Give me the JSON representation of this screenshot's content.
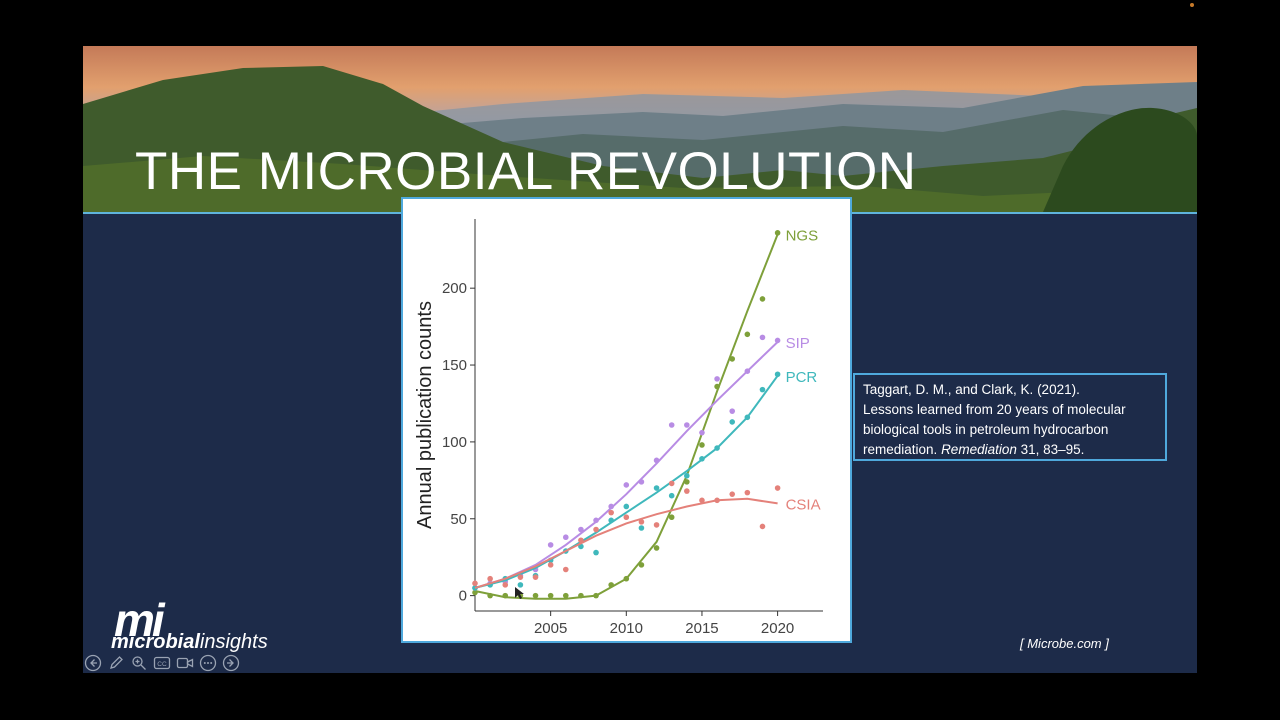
{
  "slide": {
    "title": "THE MICROBIAL REVOLUTION",
    "citation": {
      "line1": "Taggart, D. M., and Clark, K. (2021).",
      "line2": "Lessons learned from 20 years of molecular",
      "line3": "biological tools in petroleum hydrocarbon",
      "journal": "remediation.",
      "journal_italic": "Remediation",
      "volume_pages": "31, 83–95."
    },
    "source": "[ Microbe.com ]",
    "logo": {
      "mark": "mi",
      "word_bold": "microbial",
      "word_light": "insights"
    }
  },
  "toolbar": {
    "icons": [
      "back-icon",
      "pen-icon",
      "zoom-icon",
      "captions-icon",
      "camera-icon",
      "more-icon",
      "forward-icon"
    ]
  },
  "colors": {
    "slide_bg": "#1d2b49",
    "accent": "#4fa9dc",
    "ngs": "#7ea03a",
    "sip": "#b88ce4",
    "pcr": "#3fb8bc",
    "csia": "#e4817a"
  },
  "chart_data": {
    "type": "line",
    "title": "",
    "xlabel": "",
    "ylabel": "Annual publication counts",
    "xlim": [
      2000,
      2023
    ],
    "ylim": [
      -10,
      245
    ],
    "x_ticks": [
      2005,
      2010,
      2015,
      2020
    ],
    "y_ticks": [
      0,
      50,
      100,
      150,
      200
    ],
    "grid": false,
    "legend": "inline labels at right end of lines",
    "series": [
      {
        "name": "NGS",
        "color": "#7ea03a",
        "points": [
          [
            2000,
            2
          ],
          [
            2001,
            0
          ],
          [
            2002,
            0
          ],
          [
            2003,
            0
          ],
          [
            2004,
            0
          ],
          [
            2005,
            0
          ],
          [
            2006,
            0
          ],
          [
            2007,
            0
          ],
          [
            2008,
            0
          ],
          [
            2009,
            7
          ],
          [
            2010,
            11
          ],
          [
            2011,
            20
          ],
          [
            2012,
            31
          ],
          [
            2013,
            51
          ],
          [
            2014,
            74
          ],
          [
            2015,
            98
          ],
          [
            2016,
            136
          ],
          [
            2017,
            154
          ],
          [
            2018,
            170
          ],
          [
            2019,
            193
          ],
          [
            2020,
            236
          ]
        ],
        "fit": [
          [
            2000,
            3
          ],
          [
            2002,
            -1
          ],
          [
            2004,
            -2
          ],
          [
            2006,
            -2
          ],
          [
            2008,
            0
          ],
          [
            2010,
            11
          ],
          [
            2012,
            35
          ],
          [
            2014,
            78
          ],
          [
            2016,
            133
          ],
          [
            2018,
            185
          ],
          [
            2020,
            235
          ]
        ]
      },
      {
        "name": "SIP",
        "color": "#b88ce4",
        "points": [
          [
            2000,
            5
          ],
          [
            2001,
            8
          ],
          [
            2002,
            9
          ],
          [
            2003,
            13
          ],
          [
            2004,
            17
          ],
          [
            2005,
            33
          ],
          [
            2006,
            38
          ],
          [
            2007,
            43
          ],
          [
            2008,
            49
          ],
          [
            2009,
            58
          ],
          [
            2010,
            72
          ],
          [
            2011,
            74
          ],
          [
            2012,
            88
          ],
          [
            2013,
            111
          ],
          [
            2014,
            111
          ],
          [
            2015,
            106
          ],
          [
            2016,
            141
          ],
          [
            2017,
            120
          ],
          [
            2018,
            146
          ],
          [
            2019,
            168
          ],
          [
            2020,
            166
          ]
        ],
        "fit": [
          [
            2000,
            5
          ],
          [
            2002,
            11
          ],
          [
            2004,
            20
          ],
          [
            2006,
            33
          ],
          [
            2008,
            48
          ],
          [
            2010,
            66
          ],
          [
            2012,
            86
          ],
          [
            2014,
            107
          ],
          [
            2016,
            127
          ],
          [
            2018,
            146
          ],
          [
            2020,
            165
          ]
        ]
      },
      {
        "name": "PCR",
        "color": "#3fb8bc",
        "points": [
          [
            2000,
            5
          ],
          [
            2001,
            7
          ],
          [
            2002,
            11
          ],
          [
            2003,
            7
          ],
          [
            2004,
            13
          ],
          [
            2005,
            23
          ],
          [
            2006,
            29
          ],
          [
            2007,
            32
          ],
          [
            2008,
            28
          ],
          [
            2009,
            49
          ],
          [
            2010,
            58
          ],
          [
            2011,
            44
          ],
          [
            2012,
            70
          ],
          [
            2013,
            65
          ],
          [
            2014,
            78
          ],
          [
            2015,
            89
          ],
          [
            2016,
            96
          ],
          [
            2017,
            113
          ],
          [
            2018,
            116
          ],
          [
            2019,
            134
          ],
          [
            2020,
            144
          ]
        ],
        "fit": [
          [
            2000,
            5
          ],
          [
            2002,
            10
          ],
          [
            2004,
            18
          ],
          [
            2006,
            29
          ],
          [
            2008,
            41
          ],
          [
            2010,
            54
          ],
          [
            2012,
            67
          ],
          [
            2014,
            81
          ],
          [
            2016,
            96
          ],
          [
            2018,
            116
          ],
          [
            2020,
            143
          ]
        ]
      },
      {
        "name": "CSIA",
        "color": "#e4817a",
        "points": [
          [
            2000,
            8
          ],
          [
            2001,
            11
          ],
          [
            2002,
            7
          ],
          [
            2003,
            12
          ],
          [
            2004,
            12
          ],
          [
            2005,
            20
          ],
          [
            2006,
            17
          ],
          [
            2007,
            36
          ],
          [
            2008,
            43
          ],
          [
            2009,
            54
          ],
          [
            2010,
            51
          ],
          [
            2011,
            48
          ],
          [
            2012,
            46
          ],
          [
            2013,
            73
          ],
          [
            2014,
            68
          ],
          [
            2015,
            62
          ],
          [
            2016,
            62
          ],
          [
            2017,
            66
          ],
          [
            2018,
            67
          ],
          [
            2019,
            45
          ],
          [
            2020,
            70
          ]
        ],
        "fit": [
          [
            2000,
            5
          ],
          [
            2002,
            11
          ],
          [
            2004,
            19
          ],
          [
            2006,
            29
          ],
          [
            2008,
            39
          ],
          [
            2010,
            47
          ],
          [
            2012,
            53
          ],
          [
            2014,
            58
          ],
          [
            2016,
            62
          ],
          [
            2018,
            63
          ],
          [
            2020,
            60
          ]
        ]
      }
    ]
  }
}
